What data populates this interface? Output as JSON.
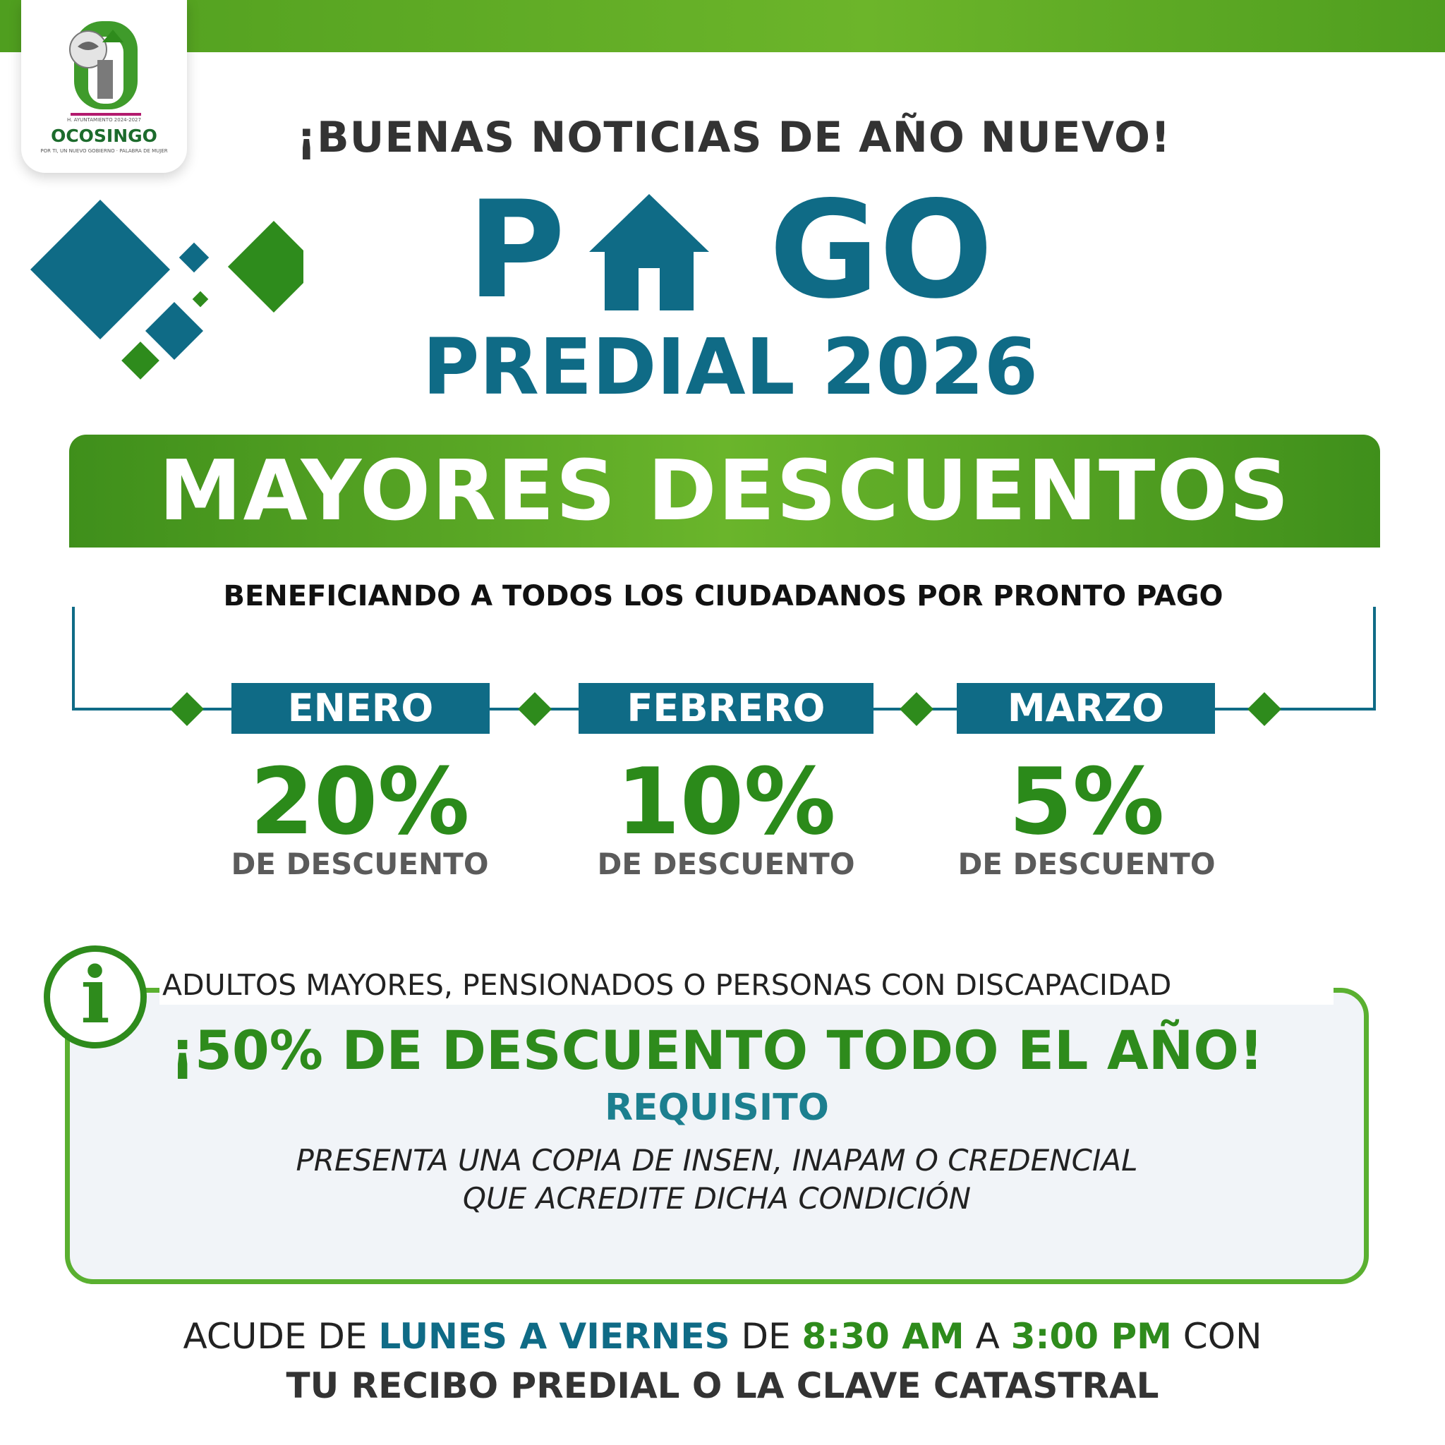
{
  "header": {
    "logo_name": "OCOSINGO",
    "logo_sub": "H. AYUNTAMIENTO 2024-2027",
    "logo_slogan": "POR TI, UN NUEVO GOBIERNO · PALABRA DE MUJER",
    "headline": "¡BUENAS NOTICIAS DE AÑO NUEVO!"
  },
  "title": {
    "pago_p": "P",
    "pago_go": "GO",
    "predial": "PREDIAL 2026"
  },
  "banner": {
    "text": "MAYORES DESCUENTOS"
  },
  "subtitle": "BENEFICIANDO A TODOS LOS CIUDADANOS POR PRONTO PAGO",
  "months": [
    {
      "name": "ENERO",
      "percent": "20%",
      "desc": "DE DESCUENTO"
    },
    {
      "name": "FEBRERO",
      "percent": "10%",
      "desc": "DE DESCUENTO"
    },
    {
      "name": "MARZO",
      "percent": "5%",
      "desc": "DE DESCUENTO"
    }
  ],
  "info": {
    "icon": "info-icon",
    "audience": "ADULTOS MAYORES, PENSIONADOS O PERSONAS CON DISCAPACIDAD",
    "offer": "¡50% DE DESCUENTO TODO EL AÑO!",
    "requisito_label": "REQUISITO",
    "requisito_line1": "PRESENTA UNA COPIA DE INSEN, INAPAM O CREDENCIAL",
    "requisito_line2": "QUE ACREDITE DICHA CONDICIÓN"
  },
  "footer": {
    "acude": "ACUDE DE",
    "days": "LUNES A VIERNES",
    "de": "DE",
    "start": "8:30 AM",
    "a": "A",
    "end": "3:00 PM",
    "con": "CON",
    "line2": "TU RECIBO PREDIAL O LA CLAVE CATASTRAL"
  },
  "colors": {
    "teal": "#0f6b86",
    "green": "#2e8b1c",
    "light_green": "#5ab030"
  }
}
